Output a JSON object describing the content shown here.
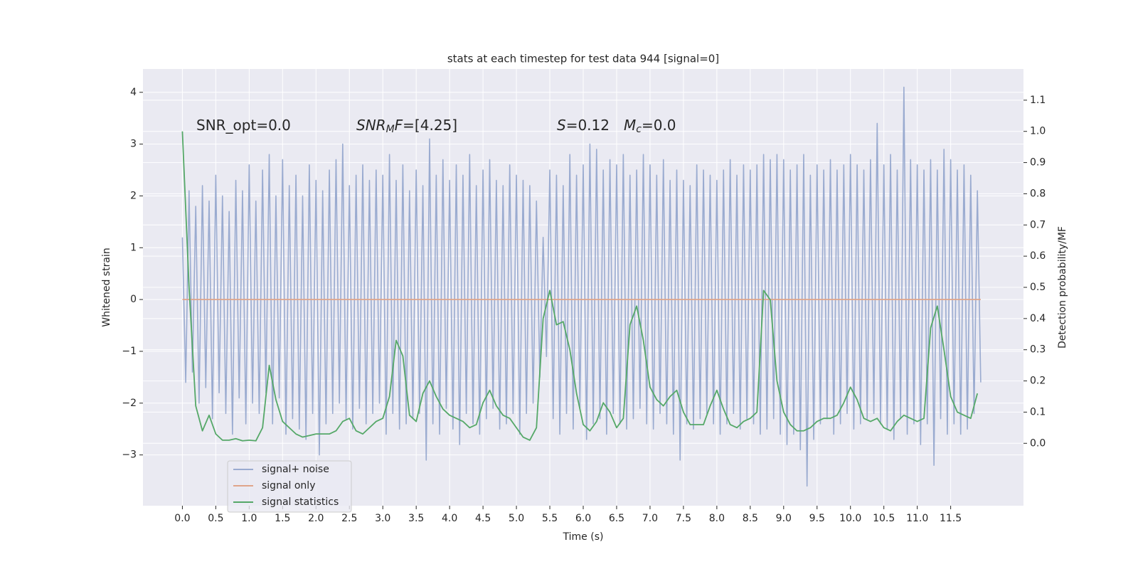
{
  "chart_data": {
    "type": "line",
    "title": "stats at each timestep for test data 944 [signal=0]",
    "xlabel": "Time (s)",
    "ylabel": "Whitened strain",
    "y2label": "Detection probability/MF",
    "xlim": [
      -0.59,
      12.59
    ],
    "ylim": [
      -3.98,
      4.45
    ],
    "y2lim": [
      -0.2,
      1.2
    ],
    "xticks": [
      {
        "value": 0,
        "label": "0.0"
      },
      {
        "value": 0.5,
        "label": "0.5"
      },
      {
        "value": 1,
        "label": "1.0"
      },
      {
        "value": 1.5,
        "label": "1.5"
      },
      {
        "value": 2,
        "label": "2.0"
      },
      {
        "value": 2.5,
        "label": "2.5"
      },
      {
        "value": 3,
        "label": "3.0"
      },
      {
        "value": 3.5,
        "label": "3.5"
      },
      {
        "value": 4,
        "label": "4.0"
      },
      {
        "value": 4.5,
        "label": "4.5"
      },
      {
        "value": 5,
        "label": "5.0"
      },
      {
        "value": 5.5,
        "label": "5.5"
      },
      {
        "value": 6,
        "label": "6.0"
      },
      {
        "value": 6.5,
        "label": "6.5"
      },
      {
        "value": 7,
        "label": "7.0"
      },
      {
        "value": 7.5,
        "label": "7.5"
      },
      {
        "value": 8,
        "label": "8.0"
      },
      {
        "value": 8.5,
        "label": "8.5"
      },
      {
        "value": 9,
        "label": "9.0"
      },
      {
        "value": 9.5,
        "label": "9.5"
      },
      {
        "value": 10,
        "label": "10.0"
      },
      {
        "value": 10.5,
        "label": "10.5"
      },
      {
        "value": 11,
        "label": "11.0"
      },
      {
        "value": 11.5,
        "label": "11.5"
      }
    ],
    "yticks": [
      {
        "value": -3,
        "label": "−3"
      },
      {
        "value": -2,
        "label": "−2"
      },
      {
        "value": -1,
        "label": "−1"
      },
      0,
      1,
      2,
      3,
      4
    ],
    "y2ticks": [
      {
        "value": 0,
        "label": "0.0"
      },
      {
        "value": 0.1,
        "label": "0.1"
      },
      {
        "value": 0.2,
        "label": "0.2"
      },
      {
        "value": 0.3,
        "label": "0.3"
      },
      {
        "value": 0.4,
        "label": "0.4"
      },
      {
        "value": 0.5,
        "label": "0.5"
      },
      {
        "value": 0.6,
        "label": "0.6"
      },
      {
        "value": 0.7,
        "label": "0.7"
      },
      {
        "value": 0.8,
        "label": "0.8"
      },
      {
        "value": 0.9,
        "label": "0.9"
      },
      {
        "value": 1,
        "label": "1.0"
      },
      {
        "value": 1.1,
        "label": "1.1"
      }
    ],
    "grid": true,
    "legend": "lower left",
    "annotations": [
      [
        {
          "text": "SNR_opt=0.0"
        }
      ],
      [
        {
          "text": "SNR",
          "italic": true
        },
        {
          "text": "M",
          "italic": true,
          "sub": true
        },
        {
          "text": "F",
          "italic": true
        },
        {
          "text": "=[4.25]"
        }
      ],
      [
        {
          "text": "S",
          "italic": true
        },
        {
          "text": "=0.12"
        }
      ],
      [
        {
          "text": "M",
          "italic": true
        },
        {
          "text": "c",
          "italic": true,
          "sub": true
        },
        {
          "text": "=0.0"
        }
      ]
    ],
    "series": [
      {
        "name": "signal+ noise",
        "color": "#9aabd0",
        "x": [
          0,
          0.05,
          0.1,
          0.15,
          0.2,
          0.25,
          0.3,
          0.35,
          0.4,
          0.45,
          0.5,
          0.55,
          0.6,
          0.65,
          0.7,
          0.75,
          0.8,
          0.85,
          0.9,
          0.95,
          1,
          1.05,
          1.1,
          1.15,
          1.2,
          1.25,
          1.3,
          1.35,
          1.4,
          1.45,
          1.5,
          1.55,
          1.6,
          1.65,
          1.7,
          1.75,
          1.8,
          1.85,
          1.9,
          1.95,
          2,
          2.05,
          2.1,
          2.15,
          2.2,
          2.25,
          2.3,
          2.35,
          2.4,
          2.45,
          2.5,
          2.55,
          2.6,
          2.65,
          2.7,
          2.75,
          2.8,
          2.85,
          2.9,
          2.95,
          3,
          3.05,
          3.1,
          3.15,
          3.2,
          3.25,
          3.3,
          3.35,
          3.4,
          3.45,
          3.5,
          3.55,
          3.6,
          3.65,
          3.7,
          3.75,
          3.8,
          3.85,
          3.9,
          3.95,
          4,
          4.05,
          4.1,
          4.15,
          4.2,
          4.25,
          4.3,
          4.35,
          4.4,
          4.45,
          4.5,
          4.55,
          4.6,
          4.65,
          4.7,
          4.75,
          4.8,
          4.85,
          4.9,
          4.95,
          5,
          5.05,
          5.1,
          5.15,
          5.2,
          5.25,
          5.3,
          5.35,
          5.4,
          5.45,
          5.5,
          5.55,
          5.6,
          5.65,
          5.7,
          5.75,
          5.8,
          5.85,
          5.9,
          5.95,
          6,
          6.05,
          6.1,
          6.15,
          6.2,
          6.25,
          6.3,
          6.35,
          6.4,
          6.45,
          6.5,
          6.55,
          6.6,
          6.65,
          6.7,
          6.75,
          6.8,
          6.85,
          6.9,
          6.95,
          7,
          7.05,
          7.1,
          7.15,
          7.2,
          7.25,
          7.3,
          7.35,
          7.4,
          7.45,
          7.5,
          7.55,
          7.6,
          7.65,
          7.7,
          7.75,
          7.8,
          7.85,
          7.9,
          7.95,
          8,
          8.05,
          8.1,
          8.15,
          8.2,
          8.25,
          8.3,
          8.35,
          8.4,
          8.45,
          8.5,
          8.55,
          8.6,
          8.65,
          8.7,
          8.75,
          8.8,
          8.85,
          8.9,
          8.95,
          9,
          9.05,
          9.1,
          9.15,
          9.2,
          9.25,
          9.3,
          9.35,
          9.4,
          9.45,
          9.5,
          9.55,
          9.6,
          9.65,
          9.7,
          9.75,
          9.8,
          9.85,
          9.9,
          9.95,
          10,
          10.05,
          10.1,
          10.15,
          10.2,
          10.25,
          10.3,
          10.35,
          10.4,
          10.45,
          10.5,
          10.55,
          10.6,
          10.65,
          10.7,
          10.75,
          10.8,
          10.85,
          10.9,
          10.95,
          11,
          11.05,
          11.1,
          11.15,
          11.2,
          11.25,
          11.3,
          11.35,
          11.4,
          11.45,
          11.5,
          11.55,
          11.6,
          11.65,
          11.7,
          11.75,
          11.8,
          11.85,
          11.9,
          11.95
        ],
        "values": [
          1.2,
          -1.6,
          2.1,
          -1.4,
          1.8,
          -2.0,
          2.2,
          -1.7,
          1.9,
          -2.3,
          2.4,
          -1.8,
          2.0,
          -2.2,
          1.7,
          -2.6,
          2.3,
          -1.9,
          2.1,
          -2.4,
          2.6,
          -2.0,
          1.9,
          -2.2,
          2.5,
          -1.8,
          2.8,
          -2.4,
          2.0,
          -1.9,
          2.7,
          -2.6,
          2.2,
          -2.3,
          2.4,
          -2.5,
          2.0,
          -2.7,
          2.6,
          -2.2,
          2.3,
          -3.0,
          2.1,
          -2.4,
          2.5,
          -2.2,
          2.7,
          -2.0,
          3.0,
          -2.3,
          2.2,
          -2.5,
          2.4,
          -2.1,
          2.6,
          -2.4,
          2.3,
          -2.2,
          2.5,
          -2.0,
          2.4,
          -2.6,
          2.8,
          -2.2,
          2.3,
          -2.5,
          2.6,
          -2.4,
          2.1,
          -2.3,
          2.5,
          -2.2,
          2.2,
          -3.1,
          3.1,
          -2.4,
          2.4,
          -2.6,
          2.7,
          -2.1,
          2.3,
          -2.5,
          2.6,
          -2.8,
          2.4,
          -2.2,
          2.8,
          -2.4,
          2.2,
          -2.6,
          2.5,
          -2.3,
          2.7,
          -2.1,
          2.3,
          -2.5,
          2.2,
          -2.4,
          2.6,
          -2.2,
          2.4,
          -2.6,
          2.3,
          -2.2,
          2.2,
          -2.0,
          1.9,
          -1.5,
          1.2,
          -1.1,
          2.5,
          -2.3,
          2.4,
          -2.6,
          2.2,
          -2.2,
          2.8,
          -2.5,
          2.4,
          -2.1,
          2.6,
          -2.7,
          3.0,
          -2.4,
          2.9,
          -2.3,
          2.5,
          -2.6,
          2.7,
          -2.2,
          2.6,
          -2.4,
          2.8,
          -2.5,
          2.4,
          -2.3,
          2.5,
          -2.1,
          2.8,
          -2.4,
          2.6,
          -2.5,
          2.4,
          -2.2,
          2.7,
          -2.4,
          2.3,
          -2.6,
          2.5,
          -3.1,
          2.3,
          -2.4,
          2.2,
          -2.5,
          2.6,
          -2.3,
          2.5,
          -2.2,
          2.4,
          -2.4,
          2.3,
          -2.6,
          2.5,
          -2.4,
          2.7,
          -2.2,
          2.4,
          -2.5,
          2.6,
          -2.3,
          2.5,
          -2.4,
          2.6,
          -2.6,
          2.8,
          -2.5,
          2.7,
          -2.3,
          2.8,
          -2.6,
          2.7,
          -2.8,
          2.5,
          -2.6,
          2.6,
          -2.9,
          2.8,
          -3.6,
          2.4,
          -2.7,
          2.6,
          -2.4,
          2.5,
          -2.3,
          2.7,
          -2.6,
          2.5,
          -2.4,
          2.6,
          -2.2,
          2.8,
          -2.5,
          2.6,
          -2.4,
          2.5,
          -2.3,
          2.7,
          -2.2,
          3.4,
          -2.4,
          2.6,
          -2.5,
          2.8,
          -2.7,
          2.5,
          -2.3,
          4.1,
          -2.6,
          2.7,
          -2.4,
          2.6,
          -2.8,
          2.5,
          -2.4,
          2.7,
          -3.2,
          2.5,
          -2.3,
          2.9,
          -2.6,
          2.7,
          -2.4,
          2.5,
          -2.6,
          2.6,
          -2.5,
          2.4,
          -2.2,
          2.1,
          -1.6
        ]
      },
      {
        "name": "signal only",
        "color": "#e0a58a",
        "x": [
          0,
          11.95
        ],
        "values": [
          0,
          0
        ]
      },
      {
        "name": "signal statistics",
        "color": "#55a868",
        "axis": "y2",
        "x": [
          0,
          0.1,
          0.2,
          0.3,
          0.4,
          0.5,
          0.6,
          0.7,
          0.8,
          0.9,
          1,
          1.1,
          1.2,
          1.3,
          1.4,
          1.5,
          1.6,
          1.7,
          1.8,
          1.9,
          2,
          2.1,
          2.2,
          2.3,
          2.4,
          2.5,
          2.6,
          2.7,
          2.8,
          2.9,
          3,
          3.1,
          3.2,
          3.3,
          3.4,
          3.5,
          3.6,
          3.7,
          3.8,
          3.9,
          4,
          4.1,
          4.2,
          4.3,
          4.4,
          4.5,
          4.6,
          4.7,
          4.8,
          4.9,
          5,
          5.1,
          5.2,
          5.3,
          5.4,
          5.5,
          5.6,
          5.7,
          5.8,
          5.9,
          6,
          6.1,
          6.2,
          6.3,
          6.4,
          6.5,
          6.6,
          6.7,
          6.8,
          6.9,
          7,
          7.1,
          7.2,
          7.3,
          7.4,
          7.5,
          7.6,
          7.7,
          7.8,
          7.9,
          8,
          8.1,
          8.2,
          8.3,
          8.4,
          8.5,
          8.6,
          8.7,
          8.8,
          8.9,
          9,
          9.1,
          9.2,
          9.3,
          9.4,
          9.5,
          9.6,
          9.7,
          9.8,
          9.9,
          10,
          10.1,
          10.2,
          10.3,
          10.4,
          10.5,
          10.6,
          10.7,
          10.8,
          10.9,
          11,
          11.1,
          11.2,
          11.3,
          11.4,
          11.5,
          11.6,
          11.7,
          11.8,
          11.9
        ],
        "values": [
          1.0,
          0.5,
          0.12,
          0.04,
          0.09,
          0.03,
          0.01,
          0.01,
          0.015,
          0.008,
          0.01,
          0.008,
          0.05,
          0.25,
          0.14,
          0.07,
          0.05,
          0.03,
          0.02,
          0.025,
          0.03,
          0.03,
          0.03,
          0.04,
          0.07,
          0.08,
          0.04,
          0.03,
          0.05,
          0.07,
          0.08,
          0.15,
          0.33,
          0.28,
          0.09,
          0.07,
          0.16,
          0.2,
          0.15,
          0.11,
          0.09,
          0.08,
          0.07,
          0.05,
          0.06,
          0.13,
          0.17,
          0.12,
          0.09,
          0.08,
          0.05,
          0.02,
          0.01,
          0.05,
          0.4,
          0.49,
          0.38,
          0.39,
          0.3,
          0.16,
          0.06,
          0.04,
          0.07,
          0.13,
          0.1,
          0.05,
          0.08,
          0.38,
          0.44,
          0.33,
          0.18,
          0.14,
          0.12,
          0.15,
          0.17,
          0.1,
          0.06,
          0.06,
          0.06,
          0.12,
          0.17,
          0.11,
          0.06,
          0.05,
          0.07,
          0.08,
          0.1,
          0.49,
          0.46,
          0.2,
          0.1,
          0.06,
          0.04,
          0.04,
          0.05,
          0.07,
          0.08,
          0.08,
          0.09,
          0.13,
          0.18,
          0.14,
          0.08,
          0.07,
          0.08,
          0.05,
          0.04,
          0.07,
          0.09,
          0.08,
          0.07,
          0.08,
          0.37,
          0.44,
          0.3,
          0.15,
          0.1,
          0.09,
          0.08,
          0.16
        ]
      }
    ]
  }
}
